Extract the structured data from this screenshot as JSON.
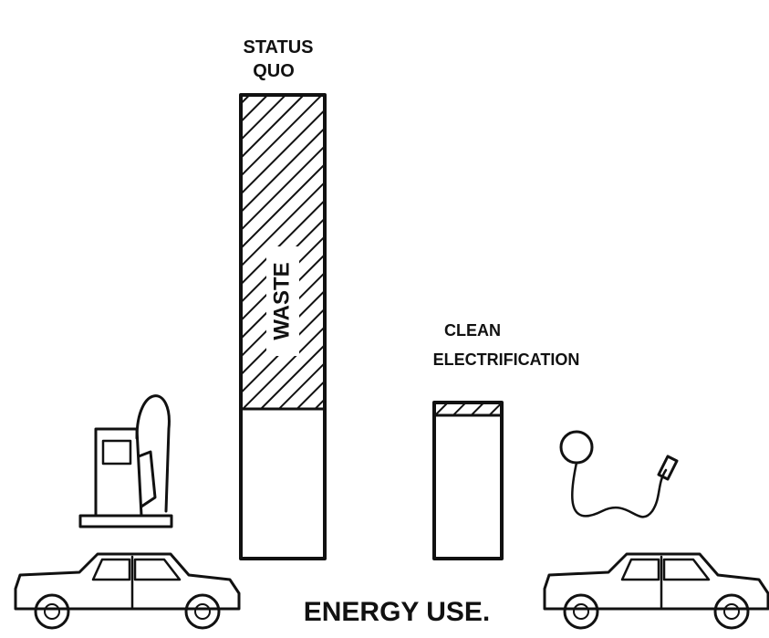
{
  "bars": [
    {
      "label_lines": [
        "STATUS",
        "QUO"
      ],
      "inner_label": "WASTE"
    },
    {
      "label_lines": [
        "CLEAN",
        "ELECTRIFICATION"
      ]
    }
  ],
  "axis_label": "ENERGY USE."
}
